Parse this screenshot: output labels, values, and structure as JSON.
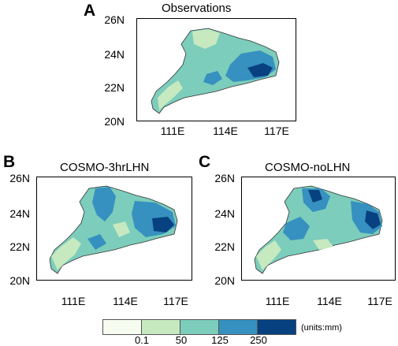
{
  "panels": [
    {
      "letter": "A",
      "title": "Observations",
      "lat_labels": [
        "26N",
        "24N",
        "22N",
        "20N"
      ],
      "lon_labels": [
        "111E",
        "114E",
        "117E"
      ]
    },
    {
      "letter": "B",
      "title": "COSMO-3hrLHN",
      "lat_labels": [
        "26N",
        "24N",
        "22N",
        "20N"
      ],
      "lon_labels": [
        "111E",
        "114E",
        "117E"
      ]
    },
    {
      "letter": "C",
      "title": "COSMO-noLHN",
      "lat_labels": [
        "26N",
        "24N",
        "22N",
        "20N"
      ],
      "lon_labels": [
        "111E",
        "114E",
        "117E"
      ]
    }
  ],
  "legend": {
    "colors": [
      "#f7fcf0",
      "#c7e9c0",
      "#7ccdbb",
      "#3690c0",
      "#08417f"
    ],
    "ticks": [
      "0.1",
      "50",
      "125",
      "250"
    ],
    "units": "(units:mm)"
  }
}
